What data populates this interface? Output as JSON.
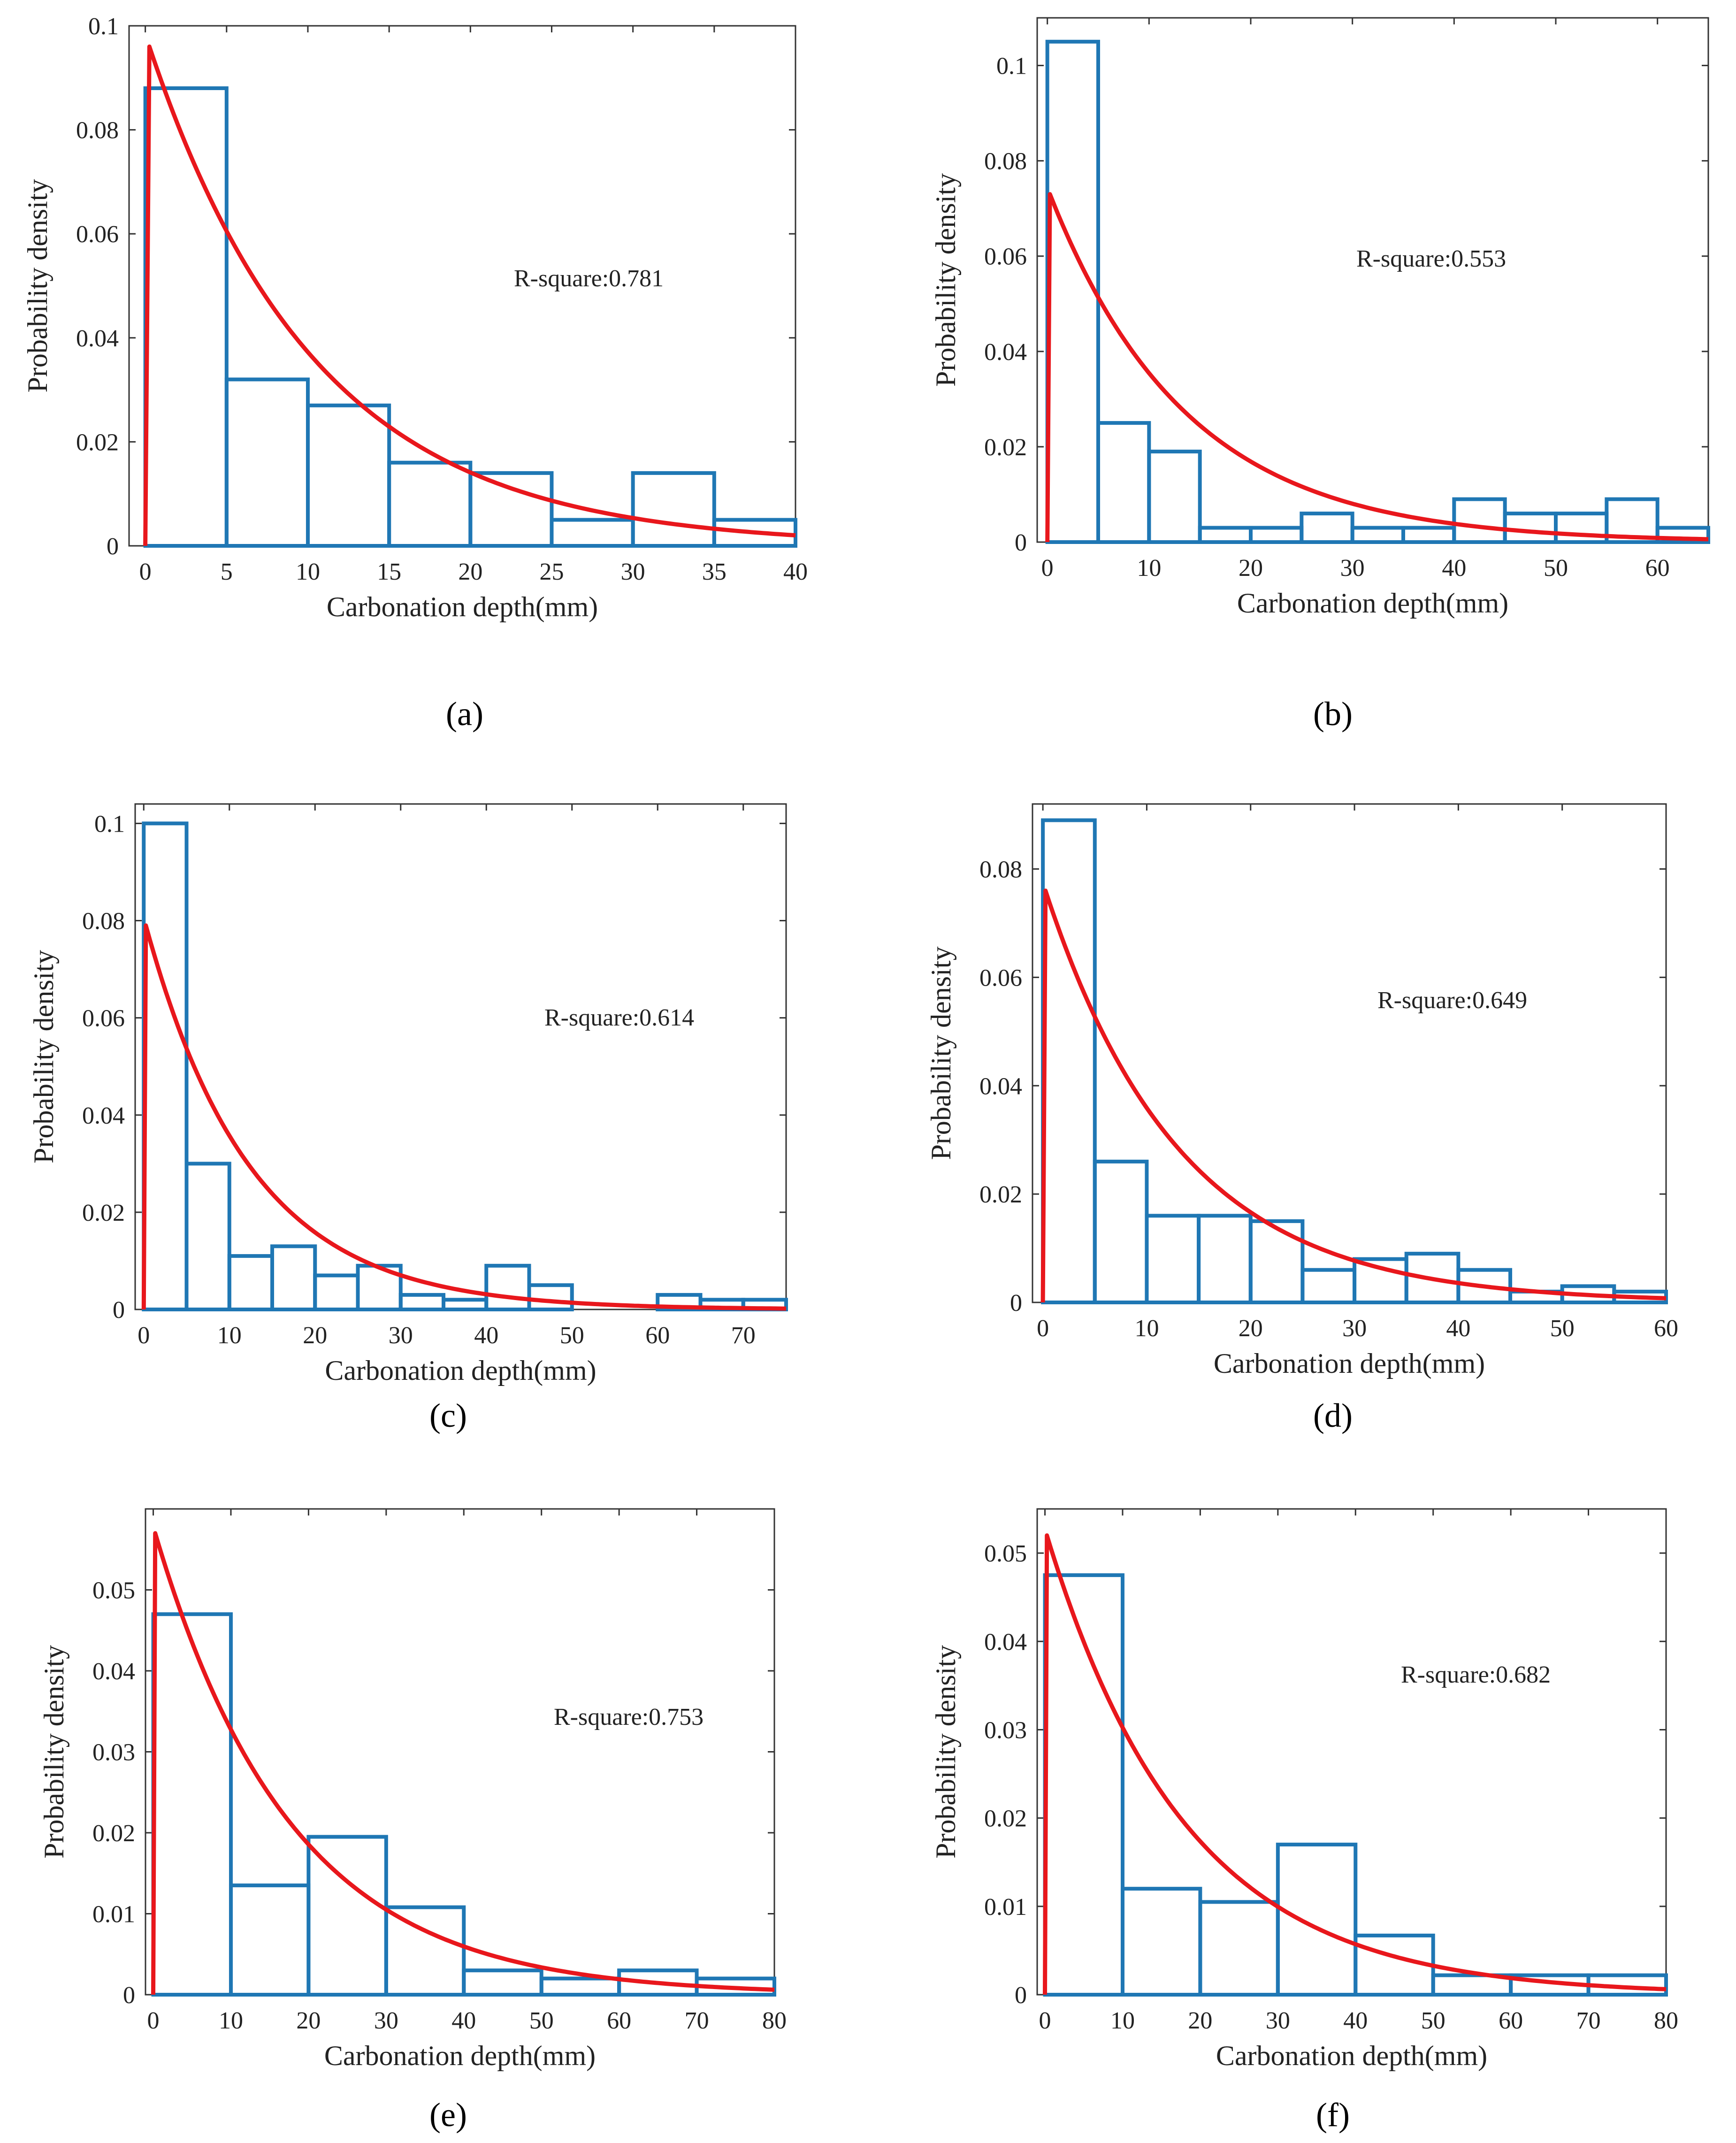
{
  "colors": {
    "histogram": "#1f77b4",
    "fit": "#e8171c",
    "axes": "#000000"
  },
  "chart_data": [
    {
      "id": "a",
      "panel_label": "(a)",
      "type": "bar",
      "title": "",
      "xlabel": "Carbonation depth(mm)",
      "ylabel": "Probability density",
      "annotation": "R-square:0.781",
      "xlim": [
        -1,
        40
      ],
      "ylim": [
        0,
        0.1
      ],
      "xticks": [
        0,
        5,
        10,
        15,
        20,
        25,
        30,
        35,
        40
      ],
      "yticks": [
        0,
        0.02,
        0.04,
        0.06,
        0.08,
        0.1
      ],
      "bins": [
        [
          0,
          5,
          0.088
        ],
        [
          5,
          10,
          0.032
        ],
        [
          10,
          15,
          0.027
        ],
        [
          15,
          20,
          0.016
        ],
        [
          20,
          25,
          0.014
        ],
        [
          25,
          30,
          0.005
        ],
        [
          30,
          35,
          0.014
        ],
        [
          35,
          40,
          0.005
        ]
      ],
      "fit": {
        "type": "exponential",
        "peak": 0.096,
        "scale_mm": 10.3
      }
    },
    {
      "id": "b",
      "panel_label": "(b)",
      "type": "bar",
      "title": "",
      "xlabel": "Carbonation depth(mm)",
      "ylabel": "Probability density",
      "annotation": "R-square:0.553",
      "xlim": [
        -1,
        65
      ],
      "ylim": [
        0,
        0.11
      ],
      "xticks": [
        0,
        10,
        20,
        30,
        40,
        50,
        60
      ],
      "yticks": [
        0,
        0.02,
        0.04,
        0.06,
        0.08,
        0.1
      ],
      "bins": [
        [
          0,
          5,
          0.105
        ],
        [
          5,
          10,
          0.025
        ],
        [
          10,
          15,
          0.019
        ],
        [
          15,
          20,
          0.003
        ],
        [
          20,
          25,
          0.003
        ],
        [
          25,
          30,
          0.006
        ],
        [
          30,
          35,
          0.003
        ],
        [
          35,
          40,
          0.003
        ],
        [
          40,
          45,
          0.009
        ],
        [
          45,
          50,
          0.006
        ],
        [
          50,
          55,
          0.006
        ],
        [
          55,
          60,
          0.009
        ],
        [
          60,
          65,
          0.003
        ]
      ],
      "fit": {
        "type": "exponential",
        "peak": 0.073,
        "scale_mm": 13.5
      }
    },
    {
      "id": "c",
      "panel_label": "(c)",
      "type": "bar",
      "title": "",
      "xlabel": "Carbonation depth(mm)",
      "ylabel": "Probability density",
      "annotation": "R-square:0.614",
      "xlim": [
        -1,
        75
      ],
      "ylim": [
        0,
        0.104
      ],
      "xticks": [
        0,
        10,
        20,
        30,
        40,
        50,
        60,
        70
      ],
      "yticks": [
        0,
        0.02,
        0.04,
        0.06,
        0.08,
        0.1
      ],
      "bins": [
        [
          0,
          5,
          0.1
        ],
        [
          5,
          10,
          0.03
        ],
        [
          10,
          15,
          0.011
        ],
        [
          15,
          20,
          0.013
        ],
        [
          20,
          25,
          0.007
        ],
        [
          25,
          30,
          0.009
        ],
        [
          30,
          35,
          0.003
        ],
        [
          35,
          40,
          0.002
        ],
        [
          40,
          45,
          0.009
        ],
        [
          45,
          50,
          0.005
        ],
        [
          50,
          55,
          0
        ],
        [
          55,
          60,
          0
        ],
        [
          60,
          65,
          0.003
        ],
        [
          65,
          70,
          0.002
        ],
        [
          70,
          75,
          0.002
        ]
      ],
      "fit": {
        "type": "exponential",
        "peak": 0.079,
        "scale_mm": 12.3
      }
    },
    {
      "id": "d",
      "panel_label": "(d)",
      "type": "bar",
      "title": "",
      "xlabel": "Carbonation depth(mm)",
      "ylabel": "Probability density",
      "annotation": "R-square:0.649",
      "xlim": [
        -1,
        60
      ],
      "ylim": [
        0,
        0.092
      ],
      "xticks": [
        0,
        10,
        20,
        30,
        40,
        50,
        60
      ],
      "yticks": [
        0,
        0.02,
        0.04,
        0.06,
        0.08
      ],
      "bins": [
        [
          0,
          5,
          0.089
        ],
        [
          5,
          10,
          0.026
        ],
        [
          10,
          15,
          0.016
        ],
        [
          15,
          20,
          0.016
        ],
        [
          20,
          25,
          0.015
        ],
        [
          25,
          30,
          0.006
        ],
        [
          30,
          35,
          0.008
        ],
        [
          35,
          40,
          0.009
        ],
        [
          40,
          45,
          0.006
        ],
        [
          45,
          50,
          0.002
        ],
        [
          50,
          55,
          0.003
        ],
        [
          55,
          60,
          0.002
        ]
      ],
      "fit": {
        "type": "exponential",
        "peak": 0.076,
        "scale_mm": 13.0
      }
    },
    {
      "id": "e",
      "panel_label": "(e)",
      "type": "bar",
      "title": "",
      "xlabel": "Carbonation depth(mm)",
      "ylabel": "Probability density",
      "annotation": "R-square:0.753",
      "xlim": [
        -1,
        80
      ],
      "ylim": [
        0,
        0.06
      ],
      "xticks": [
        0,
        10,
        20,
        30,
        40,
        50,
        60,
        70,
        80
      ],
      "yticks": [
        0,
        0.01,
        0.02,
        0.03,
        0.04,
        0.05
      ],
      "bins": [
        [
          0,
          10,
          0.047
        ],
        [
          10,
          20,
          0.0135
        ],
        [
          20,
          30,
          0.0195
        ],
        [
          30,
          40,
          0.0108
        ],
        [
          40,
          50,
          0.003
        ],
        [
          50,
          60,
          0.002
        ],
        [
          60,
          70,
          0.003
        ],
        [
          70,
          80,
          0.002
        ]
      ],
      "fit": {
        "type": "exponential",
        "peak": 0.057,
        "scale_mm": 17.6
      }
    },
    {
      "id": "f",
      "panel_label": "(f)",
      "type": "bar",
      "title": "",
      "xlabel": "Carbonation depth(mm)",
      "ylabel": "Probability density",
      "annotation": "R-square:0.682",
      "xlim": [
        -1,
        80
      ],
      "ylim": [
        0,
        0.055
      ],
      "xticks": [
        0,
        10,
        20,
        30,
        40,
        50,
        60,
        70,
        80
      ],
      "yticks": [
        0,
        0.01,
        0.02,
        0.03,
        0.04,
        0.05
      ],
      "bins": [
        [
          0,
          10,
          0.0475
        ],
        [
          10,
          20,
          0.012
        ],
        [
          20,
          30,
          0.0105
        ],
        [
          30,
          40,
          0.017
        ],
        [
          40,
          50,
          0.0067
        ],
        [
          50,
          60,
          0.0022
        ],
        [
          60,
          70,
          0.0022
        ],
        [
          70,
          80,
          0.0022
        ]
      ],
      "fit": {
        "type": "exponential",
        "peak": 0.052,
        "scale_mm": 18.0
      }
    }
  ]
}
